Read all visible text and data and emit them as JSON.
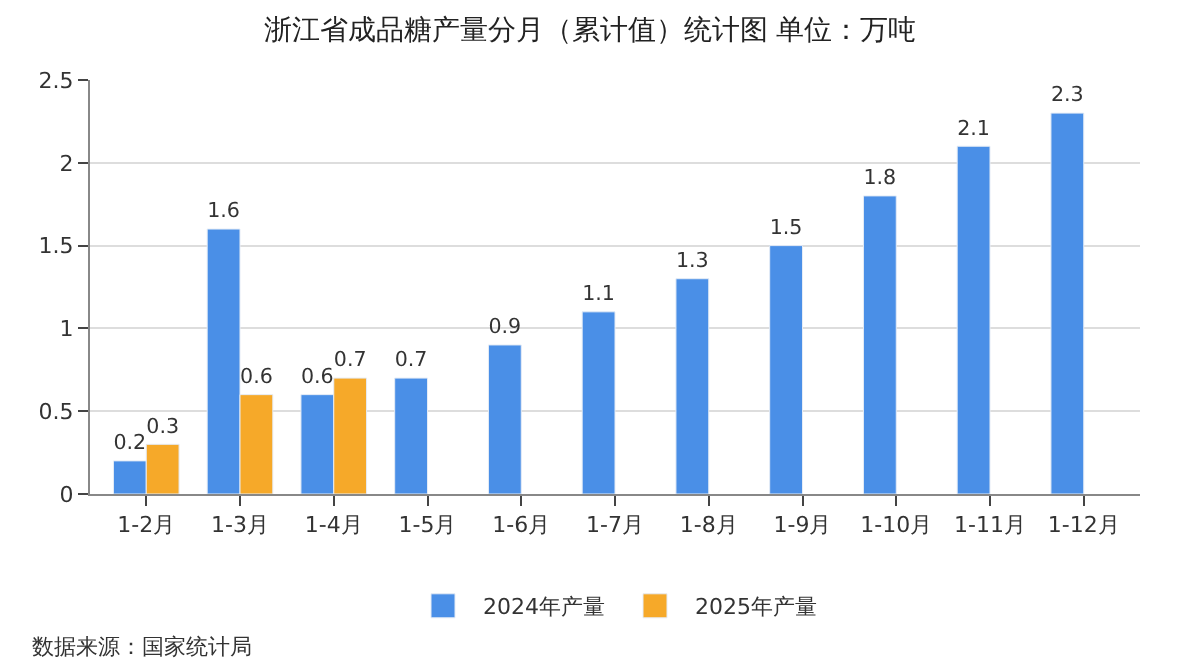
{
  "chart_data": {
    "type": "bar",
    "title": "浙江省成品糖产量分月（累计值）统计图 单位：万吨",
    "categories": [
      "1-2月",
      "1-3月",
      "1-4月",
      "1-5月",
      "1-6月",
      "1-7月",
      "1-8月",
      "1-9月",
      "1-10月",
      "1-11月",
      "1-12月"
    ],
    "series": [
      {
        "name": "2024年产量",
        "color": "#4a8fe7",
        "values": [
          0.2,
          1.6,
          0.6,
          0.7,
          0.9,
          1.1,
          1.3,
          1.5,
          1.8,
          2.1,
          2.3
        ]
      },
      {
        "name": "2025年产量",
        "color": "#f6a929",
        "values": [
          0.3,
          0.6,
          0.7,
          null,
          null,
          null,
          null,
          null,
          null,
          null,
          null
        ]
      }
    ],
    "ylim": [
      0,
      2.5
    ],
    "yticks": [
      0,
      0.5,
      1,
      1.5,
      2,
      2.5
    ],
    "grid": "y",
    "legend": "bottom",
    "data_labels": true,
    "annotations": [
      "数据来源：国家统计局"
    ]
  }
}
